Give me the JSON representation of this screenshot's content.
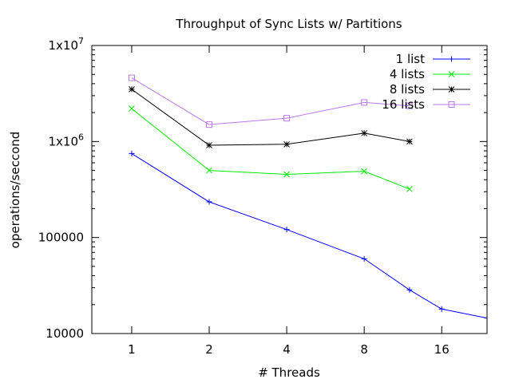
{
  "chart_data": {
    "type": "line",
    "title": "Throughput of Sync Lists w/ Partitions",
    "xlabel": "# Threads",
    "ylabel": "operations/seccond",
    "x_scale": "log2",
    "y_scale": "log10",
    "xlim": [
      0.7,
      24
    ],
    "ylim": [
      10000,
      10000000
    ],
    "x_ticks": [
      {
        "value": 1,
        "label": "1"
      },
      {
        "value": 2,
        "label": "2"
      },
      {
        "value": 4,
        "label": "4"
      },
      {
        "value": 8,
        "label": "8"
      },
      {
        "value": 16,
        "label": "16"
      }
    ],
    "y_ticks": [
      {
        "value": 10000,
        "label": "10000"
      },
      {
        "value": 100000,
        "label": "100000"
      },
      {
        "value": 1000000,
        "label": "1x10",
        "sup": "6"
      },
      {
        "value": 10000000,
        "label": "1x10",
        "sup": "7"
      }
    ],
    "legend_position": "top-right",
    "grid": false,
    "series": [
      {
        "name": "1 list",
        "color": "#0000ff",
        "marker": "plus",
        "x": [
          1,
          2,
          4,
          8,
          12,
          16,
          24
        ],
        "y": [
          750000,
          235000,
          121000,
          60000,
          28500,
          18000,
          14500
        ]
      },
      {
        "name": "4 lists",
        "color": "#00ee00",
        "marker": "cross",
        "x": [
          1,
          2,
          4,
          8,
          12
        ],
        "y": [
          2200000,
          500000,
          455000,
          490000,
          320000
        ]
      },
      {
        "name": "8 lists",
        "color": "#000000",
        "marker": "star",
        "x": [
          1,
          2,
          4,
          8,
          12
        ],
        "y": [
          3500000,
          915000,
          935000,
          1220000,
          1000000
        ]
      },
      {
        "name": "16 lists",
        "color": "#bb77ee",
        "marker": "square",
        "x": [
          1,
          2,
          4,
          8,
          12
        ],
        "y": [
          4600000,
          1500000,
          1750000,
          2550000,
          2350000
        ]
      }
    ]
  }
}
